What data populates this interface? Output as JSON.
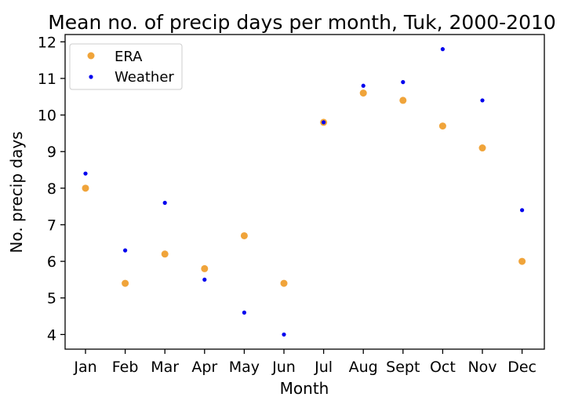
{
  "chart_data": {
    "type": "scatter",
    "title": "Mean no. of precip days per month, Tuk, 2000-2010",
    "xlabel": "Month",
    "ylabel": "No. precip days",
    "categories": [
      "Jan",
      "Feb",
      "Mar",
      "Apr",
      "May",
      "Jun",
      "Jul",
      "Aug",
      "Sept",
      "Oct",
      "Nov",
      "Dec"
    ],
    "ylim": [
      3.6,
      12.2
    ],
    "yticks": [
      4,
      5,
      6,
      7,
      8,
      9,
      10,
      11,
      12
    ],
    "legend_position": "top-left",
    "grid": false,
    "series": [
      {
        "name": "ERA",
        "color": "#F0A43A",
        "marker": "large-dot",
        "values": [
          8.0,
          5.4,
          6.2,
          5.8,
          6.7,
          5.4,
          9.8,
          10.6,
          10.4,
          9.7,
          9.1,
          6.0
        ]
      },
      {
        "name": "Weather",
        "color": "#0000EE",
        "marker": "small-dot",
        "values": [
          8.4,
          6.3,
          7.6,
          5.5,
          4.6,
          4.0,
          9.8,
          10.8,
          10.9,
          11.8,
          10.4,
          7.4
        ]
      }
    ]
  }
}
